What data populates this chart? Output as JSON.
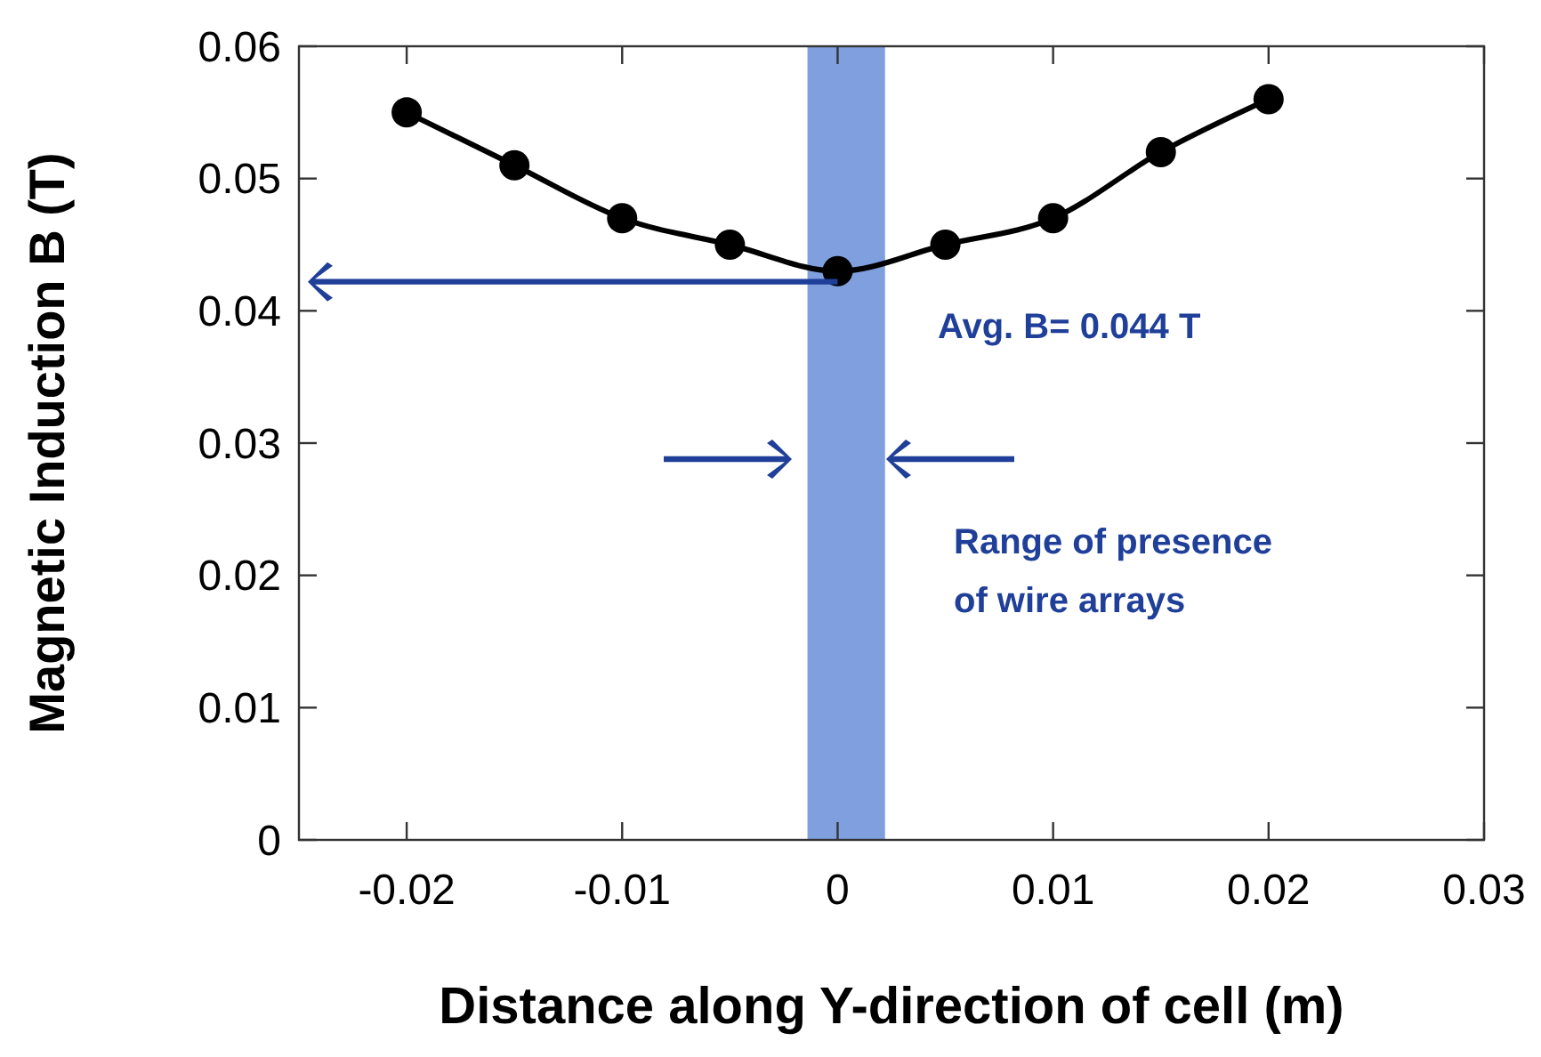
{
  "chart_data": {
    "type": "line",
    "xlabel": "Distance along Y-direction of cell (m)",
    "ylabel": "Magnetic Induction B (T)",
    "x": [
      -0.02,
      -0.015,
      -0.01,
      -0.005,
      0,
      0.005,
      0.01,
      0.015,
      0.02
    ],
    "series": [
      {
        "color": "#000000",
        "values": [
          0.055,
          0.051,
          0.047,
          0.045,
          0.043,
          0.045,
          0.047,
          0.052,
          0.056
        ]
      }
    ],
    "marker": "circle",
    "xlim": [
      -0.025,
      0.03
    ],
    "xticks": [
      -0.02,
      -0.01,
      0,
      0.01,
      0.02,
      0.03
    ],
    "ylim": [
      0,
      0.06
    ],
    "yticks": [
      0,
      0.01,
      0.02,
      0.03,
      0.04,
      0.05,
      0.06
    ],
    "bands": [
      {
        "axis": "x",
        "from": -0.0014,
        "to": 0.0022,
        "color": "#7f9fdf"
      }
    ],
    "annotations": [
      "Avg. B= 0.044 T",
      "Range of presence of wire arrays"
    ],
    "grid": false
  }
}
